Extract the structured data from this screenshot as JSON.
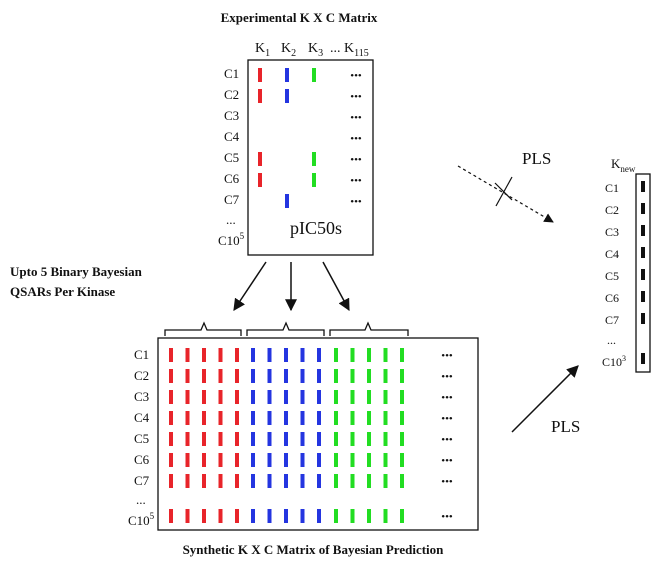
{
  "top": {
    "title": "Experimental K X C Matrix",
    "headers": [
      {
        "base": "K",
        "sub": "1"
      },
      {
        "base": "K",
        "sub": "2"
      },
      {
        "base": "K",
        "sub": "3"
      },
      {
        "base": "... K",
        "sub": "115"
      }
    ],
    "rows": [
      "C1",
      "C2",
      "C3",
      "C4",
      "C5",
      "C6",
      "C7"
    ],
    "ellipsis_row": "...",
    "last_row": {
      "base": "C10",
      "sup": "5"
    },
    "center_label": "pIC50s",
    "cells": [
      [
        "red",
        "blue",
        "green"
      ],
      [
        "red",
        "blue",
        ""
      ],
      [
        "",
        "",
        ""
      ],
      [
        "",
        "",
        ""
      ],
      [
        "red",
        "",
        "green"
      ],
      [
        "red",
        "",
        "green"
      ],
      [
        "",
        "blue",
        ""
      ]
    ]
  },
  "left_note": {
    "line1": "Upto 5 Binary Bayesian",
    "line2": "QSARs Per Kinase"
  },
  "synthetic": {
    "rows": [
      "C1",
      "C2",
      "C3",
      "C4",
      "C5",
      "C6",
      "C7"
    ],
    "ellipsis_row": "...",
    "last_row": {
      "base": "C10",
      "sup": "5"
    },
    "groups": [
      "red",
      "blue",
      "green"
    ],
    "bars_per_group": 5,
    "caption": "Synthetic K X C Matrix of Bayesian Prediction"
  },
  "new_column": {
    "header": {
      "base": "K",
      "sub": "new"
    },
    "rows": [
      "C1",
      "C2",
      "C3",
      "C4",
      "C5",
      "C6",
      "C7"
    ],
    "ellipsis_row": "...",
    "last_row": {
      "base": "C10",
      "sup": "3"
    }
  },
  "pls_blocked_label": "PLS",
  "pls_label": "PLS",
  "dots": "•••",
  "colors": {
    "red": "#e8242a",
    "blue": "#2435e0",
    "green": "#22dd22",
    "ink": "#111111"
  }
}
